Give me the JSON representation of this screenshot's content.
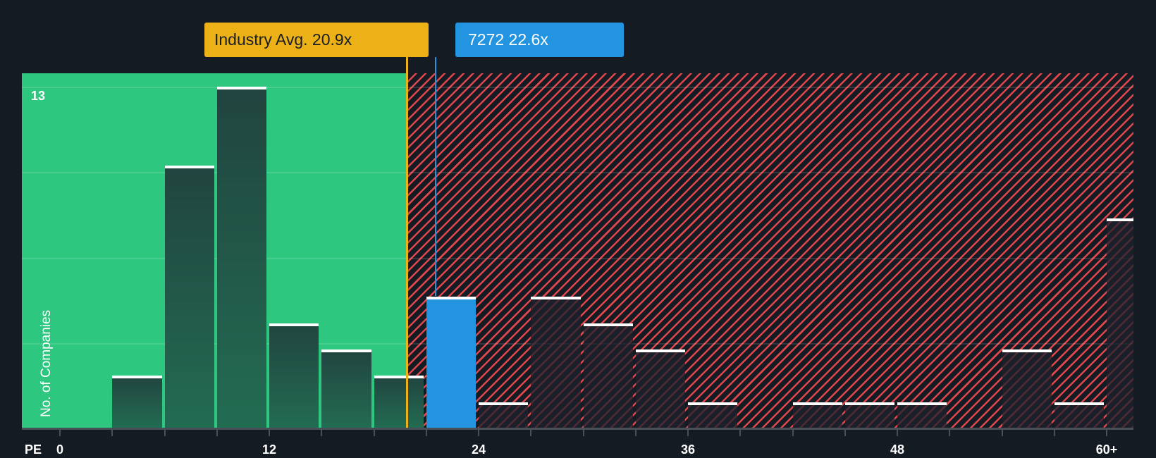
{
  "chart_data": {
    "type": "bar",
    "title": "",
    "xlabel": "PE",
    "ylabel": "No. of Companies",
    "ylim": [
      0,
      13
    ],
    "x_ticks": [
      "0",
      "12",
      "24",
      "36",
      "48",
      "60+"
    ],
    "bin_width": 3,
    "categories": [
      "3-6",
      "6-9",
      "9-12",
      "12-15",
      "15-18",
      "18-21",
      "21-24",
      "24-27",
      "27-30",
      "30-33",
      "33-36",
      "36-39",
      "39-42",
      "42-45",
      "45-48",
      "48-51",
      "51-54",
      "54-57",
      "57-60",
      "60+"
    ],
    "values": [
      2,
      10,
      13,
      4,
      3,
      2,
      5,
      1,
      5,
      4,
      3,
      1,
      0,
      1,
      1,
      1,
      0,
      3,
      1,
      8
    ],
    "highlight_index": 6,
    "annotations": [
      {
        "label": "Industry Avg. 20.9x",
        "value": 20.9,
        "color": "#edb118"
      },
      {
        "label": "7272 22.6x",
        "value": 22.6,
        "color": "#2394e0"
      }
    ],
    "zones": [
      {
        "name": "below-average",
        "range": [
          0,
          20.9
        ],
        "color": "#2ec780"
      },
      {
        "name": "above-average",
        "range": [
          20.9,
          63
        ],
        "color": "#e0474c"
      }
    ],
    "grid": true
  },
  "labels": {
    "pe_axis": "PE",
    "y_axis": "No. of Companies",
    "y_max": "13",
    "industry_avg": "Industry Avg. 20.9x",
    "company": "7272 22.6x"
  }
}
